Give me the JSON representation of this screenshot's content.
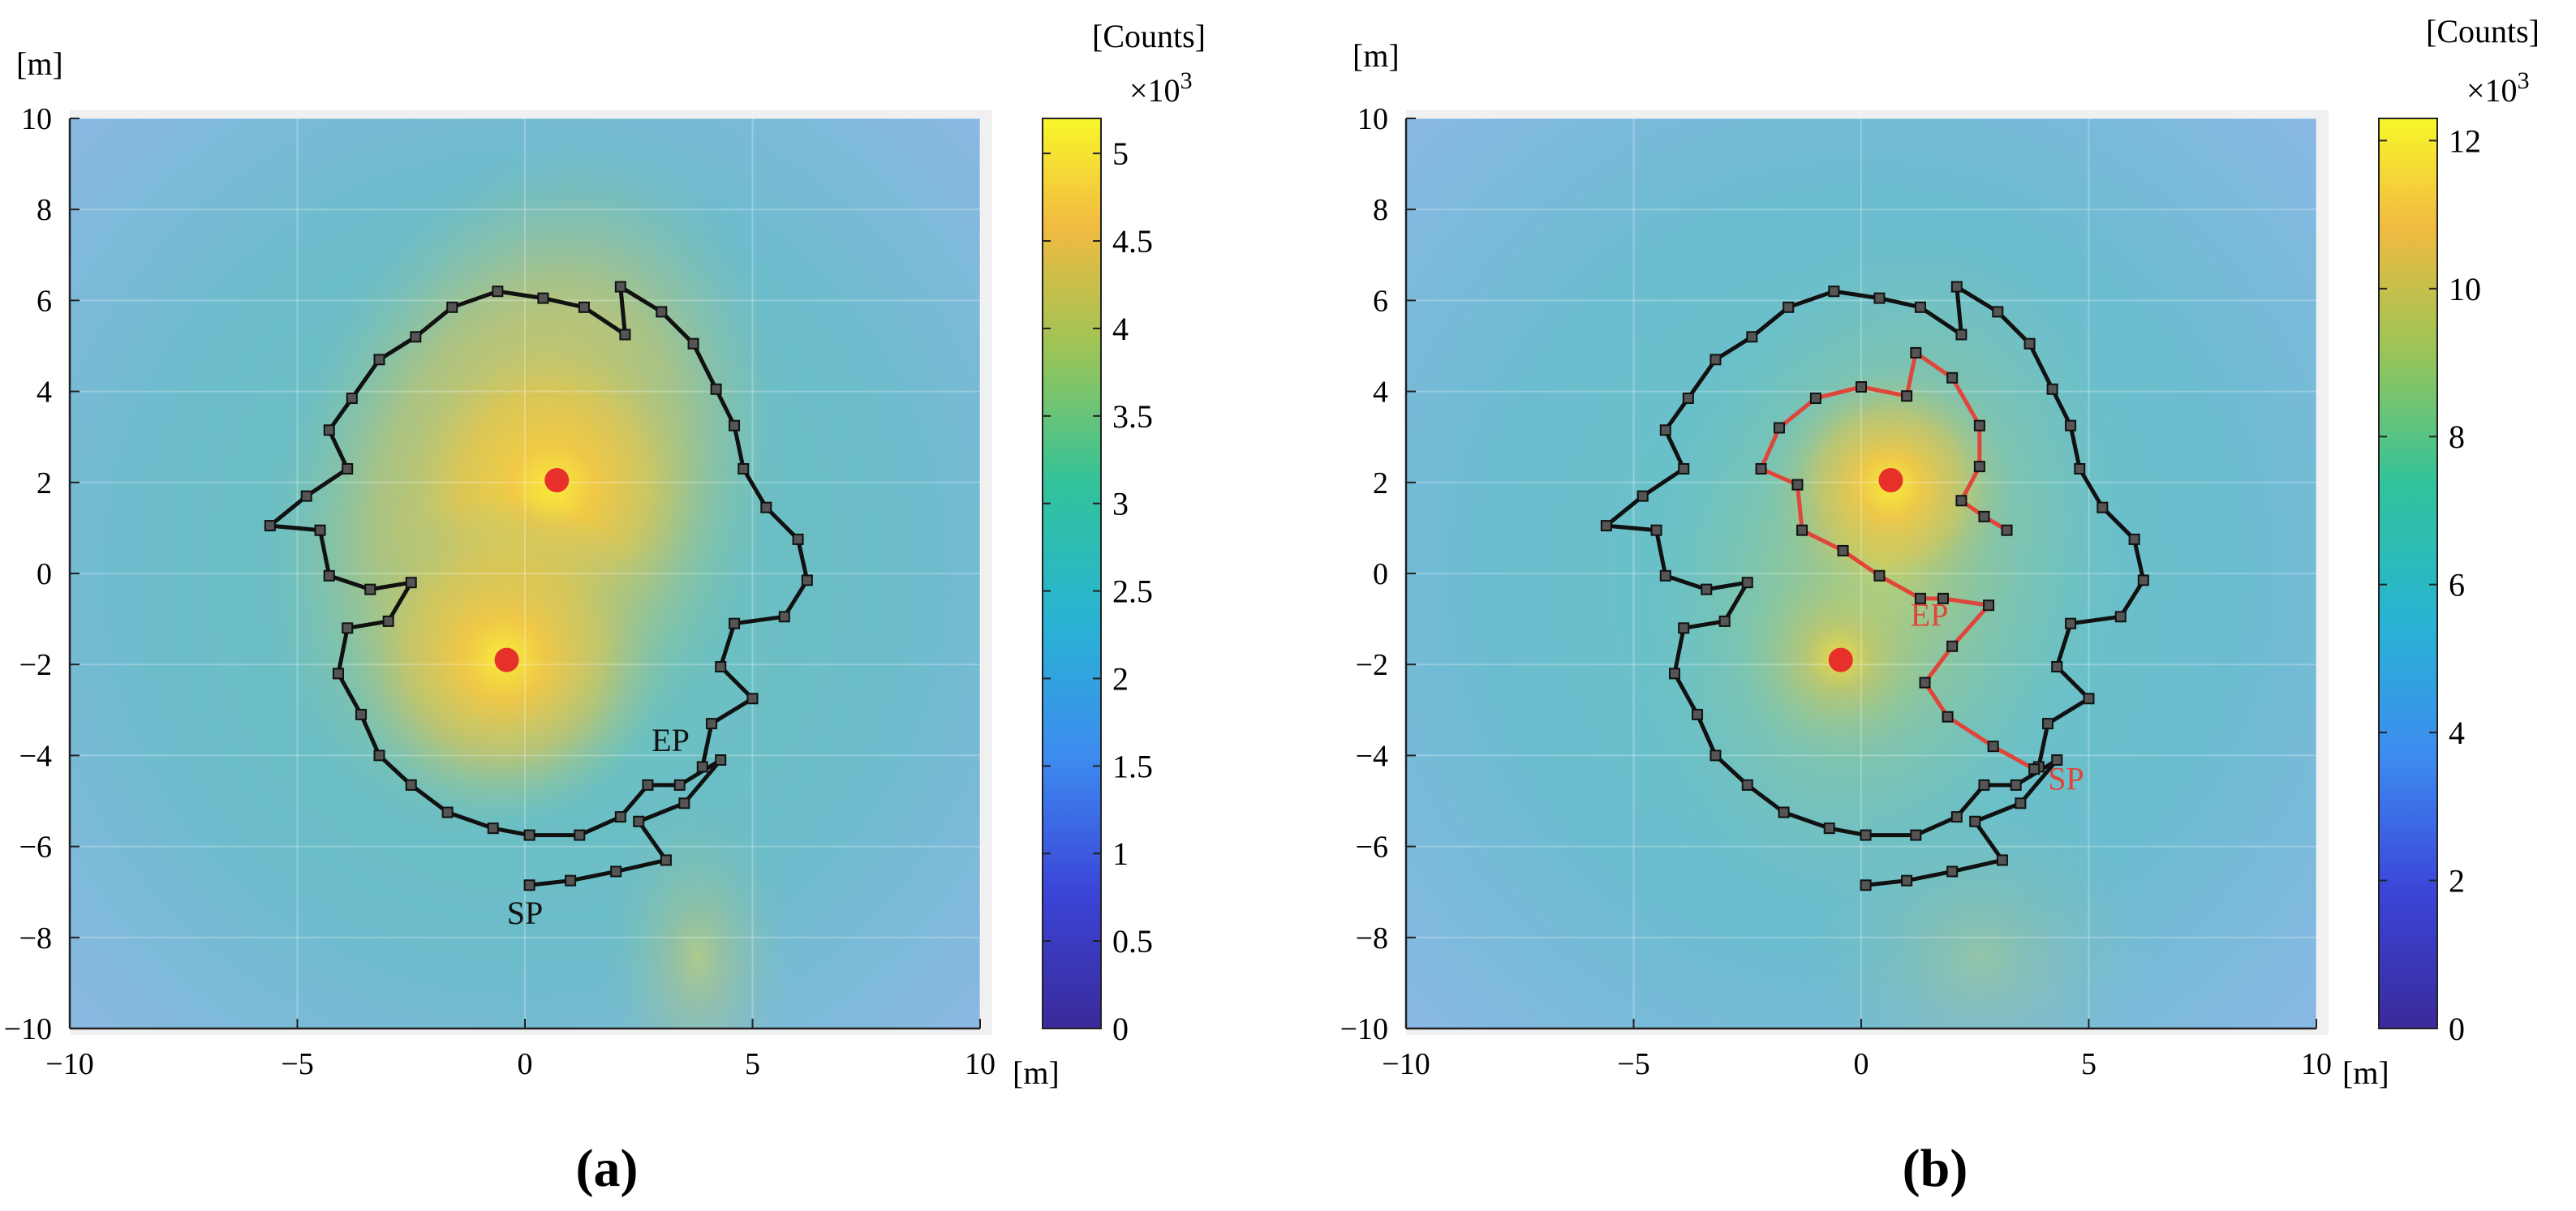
{
  "chart_data": [
    {
      "id": "a",
      "type": "heatmap",
      "caption": "(a)",
      "xlabel": "[m]",
      "ylabel": "[m]",
      "xlim": [
        -10,
        10
      ],
      "ylim": [
        -10,
        10
      ],
      "x_ticks": [
        "−10",
        "−5",
        "0",
        "5",
        "10"
      ],
      "y_ticks": [
        "10",
        "8",
        "6",
        "4",
        "2",
        "0",
        "−2",
        "−4",
        "−6",
        "−8",
        "−10"
      ],
      "grid": true,
      "colorbar": {
        "label": "[Counts]",
        "exponent": "×10",
        "exponent_power": "3",
        "range": [
          0,
          5.2
        ],
        "ticks": [
          "0",
          "0.5",
          "1",
          "1.5",
          "2",
          "2.5",
          "3",
          "3.5",
          "4",
          "4.5",
          "5"
        ],
        "tick_values": [
          0,
          0.5,
          1,
          1.5,
          2,
          2.5,
          3,
          3.5,
          4,
          4.5,
          5
        ]
      },
      "sources": [
        {
          "x": 0.7,
          "y": 2.05
        },
        {
          "x": -0.4,
          "y": -1.9
        }
      ],
      "paths": [
        {
          "name": "outer-path",
          "color": "#111111",
          "points": [
            [
              0.1,
              -6.85
            ],
            [
              1.0,
              -6.75
            ],
            [
              2.0,
              -6.55
            ],
            [
              3.1,
              -6.3
            ],
            [
              2.5,
              -5.45
            ],
            [
              3.5,
              -5.05
            ],
            [
              4.3,
              -4.1
            ],
            [
              3.4,
              -4.65
            ],
            [
              2.7,
              -4.65
            ],
            [
              2.1,
              -5.35
            ],
            [
              1.2,
              -5.75
            ],
            [
              0.1,
              -5.75
            ],
            [
              -0.7,
              -5.6
            ],
            [
              -1.7,
              -5.25
            ],
            [
              -2.5,
              -4.65
            ],
            [
              -3.2,
              -4.0
            ],
            [
              -3.6,
              -3.1
            ],
            [
              -4.1,
              -2.2
            ],
            [
              -3.9,
              -1.2
            ],
            [
              -3.0,
              -1.05
            ],
            [
              -2.5,
              -0.2
            ],
            [
              -3.4,
              -0.35
            ],
            [
              -4.3,
              -0.05
            ],
            [
              -4.5,
              0.95
            ],
            [
              -5.6,
              1.05
            ],
            [
              -4.8,
              1.7
            ],
            [
              -3.9,
              2.3
            ],
            [
              -4.3,
              3.15
            ],
            [
              -3.8,
              3.85
            ],
            [
              -3.2,
              4.7
            ],
            [
              -2.4,
              5.2
            ],
            [
              -1.6,
              5.85
            ],
            [
              -0.6,
              6.2
            ],
            [
              0.4,
              6.05
            ],
            [
              1.3,
              5.85
            ],
            [
              2.2,
              5.25
            ],
            [
              2.1,
              6.3
            ],
            [
              3.0,
              5.75
            ],
            [
              3.7,
              5.05
            ],
            [
              4.2,
              4.05
            ],
            [
              4.6,
              3.25
            ],
            [
              4.8,
              2.3
            ],
            [
              5.3,
              1.45
            ],
            [
              6.0,
              0.75
            ],
            [
              6.2,
              -0.15
            ],
            [
              5.7,
              -0.95
            ],
            [
              4.6,
              -1.1
            ],
            [
              4.3,
              -2.05
            ],
            [
              5.0,
              -2.75
            ],
            [
              4.1,
              -3.3
            ],
            [
              3.9,
              -4.25
            ]
          ]
        }
      ],
      "annotations": [
        {
          "text": "EP",
          "x": 3.2,
          "y": -3.9,
          "color": "#111111"
        },
        {
          "text": "SP",
          "x": 0.0,
          "y": -7.7,
          "color": "#111111"
        }
      ]
    },
    {
      "id": "b",
      "type": "heatmap",
      "caption": "(b)",
      "xlabel": "[m]",
      "ylabel": "[m]",
      "xlim": [
        -10,
        10
      ],
      "ylim": [
        -10,
        10
      ],
      "x_ticks": [
        "−10",
        "−5",
        "0",
        "5",
        "10"
      ],
      "y_ticks": [
        "10",
        "8",
        "6",
        "4",
        "2",
        "0",
        "−2",
        "−4",
        "−6",
        "−8",
        "−10"
      ],
      "grid": true,
      "colorbar": {
        "label": "[Counts]",
        "exponent": "×10",
        "exponent_power": "3",
        "range": [
          0,
          12.3
        ],
        "ticks": [
          "0",
          "2",
          "4",
          "6",
          "8",
          "10",
          "12"
        ],
        "tick_values": [
          0,
          2,
          4,
          6,
          8,
          10,
          12
        ]
      },
      "sources": [
        {
          "x": 0.65,
          "y": 2.05
        },
        {
          "x": -0.45,
          "y": -1.9
        }
      ],
      "paths": [
        {
          "name": "outer-path",
          "color": "#111111",
          "points": [
            [
              0.1,
              -6.85
            ],
            [
              1.0,
              -6.75
            ],
            [
              2.0,
              -6.55
            ],
            [
              3.1,
              -6.3
            ],
            [
              2.5,
              -5.45
            ],
            [
              3.5,
              -5.05
            ],
            [
              4.3,
              -4.1
            ],
            [
              3.4,
              -4.65
            ],
            [
              2.7,
              -4.65
            ],
            [
              2.1,
              -5.35
            ],
            [
              1.2,
              -5.75
            ],
            [
              0.1,
              -5.75
            ],
            [
              -0.7,
              -5.6
            ],
            [
              -1.7,
              -5.25
            ],
            [
              -2.5,
              -4.65
            ],
            [
              -3.2,
              -4.0
            ],
            [
              -3.6,
              -3.1
            ],
            [
              -4.1,
              -2.2
            ],
            [
              -3.9,
              -1.2
            ],
            [
              -3.0,
              -1.05
            ],
            [
              -2.5,
              -0.2
            ],
            [
              -3.4,
              -0.35
            ],
            [
              -4.3,
              -0.05
            ],
            [
              -4.5,
              0.95
            ],
            [
              -5.6,
              1.05
            ],
            [
              -4.8,
              1.7
            ],
            [
              -3.9,
              2.3
            ],
            [
              -4.3,
              3.15
            ],
            [
              -3.8,
              3.85
            ],
            [
              -3.2,
              4.7
            ],
            [
              -2.4,
              5.2
            ],
            [
              -1.6,
              5.85
            ],
            [
              -0.6,
              6.2
            ],
            [
              0.4,
              6.05
            ],
            [
              1.3,
              5.85
            ],
            [
              2.2,
              5.25
            ],
            [
              2.1,
              6.3
            ],
            [
              3.0,
              5.75
            ],
            [
              3.7,
              5.05
            ],
            [
              4.2,
              4.05
            ],
            [
              4.6,
              3.25
            ],
            [
              4.8,
              2.3
            ],
            [
              5.3,
              1.45
            ],
            [
              6.0,
              0.75
            ],
            [
              6.2,
              -0.15
            ],
            [
              5.7,
              -0.95
            ],
            [
              4.6,
              -1.1
            ],
            [
              4.3,
              -2.05
            ],
            [
              5.0,
              -2.75
            ],
            [
              4.1,
              -3.3
            ],
            [
              3.9,
              -4.25
            ]
          ]
        },
        {
          "name": "inner-path",
          "color": "#e0453a",
          "points": [
            [
              3.8,
              -4.3
            ],
            [
              2.9,
              -3.8
            ],
            [
              1.9,
              -3.15
            ],
            [
              1.4,
              -2.4
            ],
            [
              2.0,
              -1.6
            ],
            [
              2.8,
              -0.7
            ],
            [
              1.8,
              -0.55
            ],
            [
              1.3,
              -0.55
            ],
            [
              0.4,
              -0.05
            ],
            [
              -0.4,
              0.5
            ],
            [
              -1.3,
              0.95
            ],
            [
              -1.4,
              1.95
            ],
            [
              -2.2,
              2.3
            ],
            [
              -1.8,
              3.2
            ],
            [
              -1.0,
              3.85
            ],
            [
              0.0,
              4.1
            ],
            [
              1.0,
              3.9
            ],
            [
              1.2,
              4.85
            ],
            [
              2.0,
              4.3
            ],
            [
              2.6,
              3.25
            ],
            [
              2.6,
              2.35
            ],
            [
              2.2,
              1.6
            ],
            [
              2.7,
              1.25
            ],
            [
              3.2,
              0.95
            ]
          ]
        }
      ],
      "annotations": [
        {
          "text": "EP",
          "x": 1.5,
          "y": -1.15,
          "color": "#e0453a"
        },
        {
          "text": "SP",
          "x": 4.5,
          "y": -4.75,
          "color": "#e0453a"
        }
      ]
    }
  ]
}
